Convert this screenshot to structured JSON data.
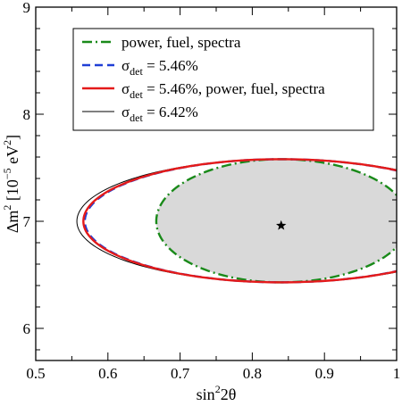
{
  "chart_data": {
    "type": "line",
    "title": "",
    "xlabel": {
      "text": "sin",
      "sup": "2",
      "rest": "2θ"
    },
    "ylabel": {
      "delta": "Δm",
      "sup": "2",
      "unit_open": " [10",
      "unit_exp": "−5",
      "unit_mid": " eV",
      "unit_sup": "2",
      "unit_close": "]"
    },
    "xlim": [
      0.5,
      1.0
    ],
    "ylim": [
      5.7,
      9.0
    ],
    "xticks": [
      "0.5",
      "0.6",
      "0.7",
      "0.8",
      "0.9",
      "1"
    ],
    "xtick_values": [
      0.5,
      0.6,
      0.7,
      0.8,
      0.9,
      1.0
    ],
    "yticks": [
      "6",
      "7",
      "8",
      "9"
    ],
    "ytick_values": [
      6,
      7,
      8,
      9
    ],
    "best_fit": {
      "x": 0.84,
      "y": 6.96,
      "marker": "star"
    },
    "legend_placement": "top-left",
    "series": [
      {
        "name": "power, fuel, spectra",
        "sigma": false,
        "color": "#1a8a1a",
        "style": "dashdot",
        "filled": true,
        "fill": "#d9d9d9",
        "center": [
          0.84,
          7.0
        ],
        "x_left": 0.667,
        "y_top": 7.58,
        "y_bottom": 6.43
      },
      {
        "name": " = 5.46%",
        "sigma": true,
        "sigma_sub": "det",
        "color": "#1f3fd6",
        "style": "dashed",
        "filled": false,
        "center": [
          0.84,
          7.0
        ],
        "x_left": 0.568,
        "y_top": 7.58,
        "y_bottom": 6.43
      },
      {
        "name": " = 5.46%, power, fuel, spectra",
        "sigma": true,
        "sigma_sub": "det",
        "color": "#e41a1a",
        "style": "solid",
        "filled": false,
        "center": [
          0.84,
          7.0
        ],
        "x_left": 0.566,
        "y_top": 7.58,
        "y_bottom": 6.43
      },
      {
        "name": " = 6.42%",
        "sigma": true,
        "sigma_sub": "det",
        "color": "#000000",
        "style": "thin",
        "filled": false,
        "center": [
          0.84,
          7.0
        ],
        "x_left": 0.557,
        "y_top": 7.58,
        "y_bottom": 6.43
      }
    ]
  }
}
